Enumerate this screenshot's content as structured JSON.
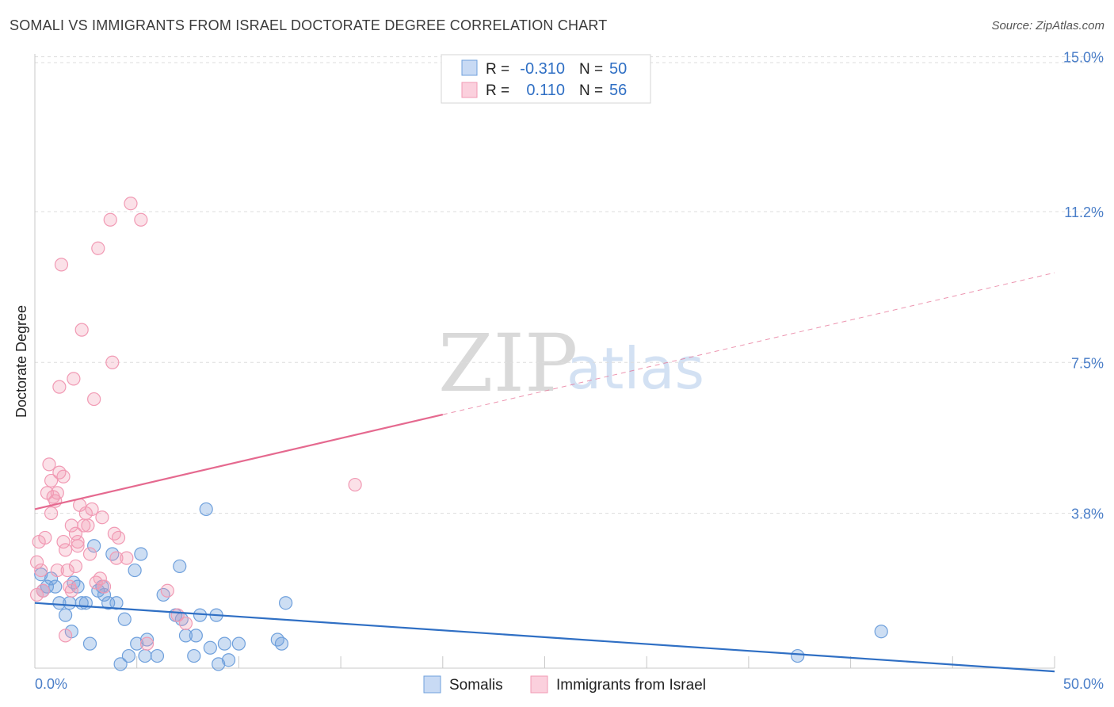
{
  "title": "SOMALI VS IMMIGRANTS FROM ISRAEL DOCTORATE DEGREE CORRELATION CHART",
  "source": "Source: ZipAtlas.com",
  "watermark": {
    "zip": "ZIP",
    "atlas": "atlas"
  },
  "legend": {
    "r_label": "R =",
    "n_label": "N =",
    "rows": [
      {
        "name": "Somalis",
        "r": "-0.310",
        "n": "50",
        "color": "#6fa0dc"
      },
      {
        "name": "Immigrants from Israel",
        "r": "0.110",
        "n": "56",
        "color": "#f19ab4"
      }
    ]
  },
  "chart_data": {
    "type": "scatter",
    "title": "SOMALI VS IMMIGRANTS FROM ISRAEL DOCTORATE DEGREE CORRELATION CHART",
    "xlabel": "",
    "ylabel": "Doctorate Degree",
    "xlim": [
      0,
      50
    ],
    "ylim": [
      0,
      15.4
    ],
    "x_tick_labels": [
      "0.0%",
      "50.0%"
    ],
    "y_ticks": [
      3.8,
      7.5,
      11.2,
      15.0
    ],
    "y_tick_labels": [
      "3.8%",
      "7.5%",
      "11.2%",
      "15.0%"
    ],
    "grid": true,
    "series": [
      {
        "name": "Somalis",
        "color": "#6fa0dc",
        "points": [
          [
            0.3,
            2.3
          ],
          [
            0.4,
            1.9
          ],
          [
            0.6,
            2.0
          ],
          [
            0.8,
            2.2
          ],
          [
            1.0,
            2.0
          ],
          [
            1.2,
            1.6
          ],
          [
            1.5,
            1.3
          ],
          [
            1.7,
            1.6
          ],
          [
            1.8,
            0.9
          ],
          [
            1.9,
            2.1
          ],
          [
            2.1,
            2.0
          ],
          [
            2.3,
            1.6
          ],
          [
            2.5,
            1.6
          ],
          [
            2.7,
            0.6
          ],
          [
            2.9,
            3.0
          ],
          [
            3.1,
            1.9
          ],
          [
            3.3,
            2.0
          ],
          [
            3.4,
            1.8
          ],
          [
            3.6,
            1.6
          ],
          [
            3.8,
            2.8
          ],
          [
            4.0,
            1.6
          ],
          [
            4.2,
            0.1
          ],
          [
            4.4,
            1.2
          ],
          [
            4.6,
            0.3
          ],
          [
            4.9,
            2.4
          ],
          [
            5.0,
            0.6
          ],
          [
            5.2,
            2.8
          ],
          [
            5.4,
            0.3
          ],
          [
            5.5,
            0.7
          ],
          [
            6.0,
            0.3
          ],
          [
            6.3,
            1.8
          ],
          [
            6.9,
            1.3
          ],
          [
            7.1,
            2.5
          ],
          [
            7.2,
            1.2
          ],
          [
            7.4,
            0.8
          ],
          [
            7.8,
            0.3
          ],
          [
            7.9,
            0.8
          ],
          [
            8.1,
            1.3
          ],
          [
            8.4,
            3.9
          ],
          [
            8.6,
            0.5
          ],
          [
            8.9,
            1.3
          ],
          [
            9.0,
            0.1
          ],
          [
            9.3,
            0.6
          ],
          [
            9.5,
            0.2
          ],
          [
            10.0,
            0.6
          ],
          [
            11.9,
            0.7
          ],
          [
            12.1,
            0.6
          ],
          [
            12.3,
            1.6
          ],
          [
            37.4,
            0.3
          ],
          [
            41.5,
            0.9
          ]
        ]
      },
      {
        "name": "Immigrants from Israel",
        "color": "#f19ab4",
        "points": [
          [
            0.1,
            2.6
          ],
          [
            0.1,
            1.8
          ],
          [
            0.2,
            3.1
          ],
          [
            0.3,
            2.4
          ],
          [
            0.4,
            1.9
          ],
          [
            0.5,
            3.2
          ],
          [
            0.6,
            4.3
          ],
          [
            0.7,
            5.0
          ],
          [
            0.8,
            4.6
          ],
          [
            0.8,
            3.8
          ],
          [
            0.9,
            4.2
          ],
          [
            1.0,
            4.1
          ],
          [
            1.1,
            4.3
          ],
          [
            1.1,
            2.4
          ],
          [
            1.2,
            6.9
          ],
          [
            1.2,
            4.8
          ],
          [
            1.3,
            9.9
          ],
          [
            1.4,
            4.7
          ],
          [
            1.4,
            3.1
          ],
          [
            1.5,
            0.8
          ],
          [
            1.5,
            2.9
          ],
          [
            1.6,
            2.4
          ],
          [
            1.7,
            2.0
          ],
          [
            1.8,
            3.5
          ],
          [
            1.8,
            1.9
          ],
          [
            1.9,
            7.1
          ],
          [
            2.0,
            2.5
          ],
          [
            2.0,
            3.3
          ],
          [
            2.1,
            3.1
          ],
          [
            2.1,
            3.0
          ],
          [
            2.2,
            4.0
          ],
          [
            2.3,
            8.3
          ],
          [
            2.4,
            3.5
          ],
          [
            2.5,
            3.8
          ],
          [
            2.6,
            3.5
          ],
          [
            2.7,
            2.8
          ],
          [
            2.8,
            3.9
          ],
          [
            2.9,
            6.6
          ],
          [
            3.0,
            2.1
          ],
          [
            3.1,
            10.3
          ],
          [
            3.2,
            2.2
          ],
          [
            3.3,
            3.7
          ],
          [
            3.4,
            2.0
          ],
          [
            3.7,
            11.0
          ],
          [
            3.8,
            7.5
          ],
          [
            3.9,
            3.3
          ],
          [
            4.0,
            2.7
          ],
          [
            4.1,
            3.2
          ],
          [
            4.5,
            2.7
          ],
          [
            4.7,
            11.4
          ],
          [
            5.2,
            11.0
          ],
          [
            5.5,
            0.6
          ],
          [
            6.5,
            1.9
          ],
          [
            7.0,
            1.3
          ],
          [
            7.4,
            1.1
          ],
          [
            15.7,
            4.5
          ]
        ]
      }
    ],
    "trend_lines": [
      {
        "series": "Somalis",
        "x_from": 0,
        "y_from": 1.6,
        "x_to": 50,
        "y_to": -0.08,
        "dashed_from": null
      },
      {
        "series": "Immigrants from Israel",
        "x_from": 0,
        "y_from": 3.9,
        "x_to": 50,
        "y_to": 9.7,
        "dashed_from": 20
      }
    ]
  }
}
